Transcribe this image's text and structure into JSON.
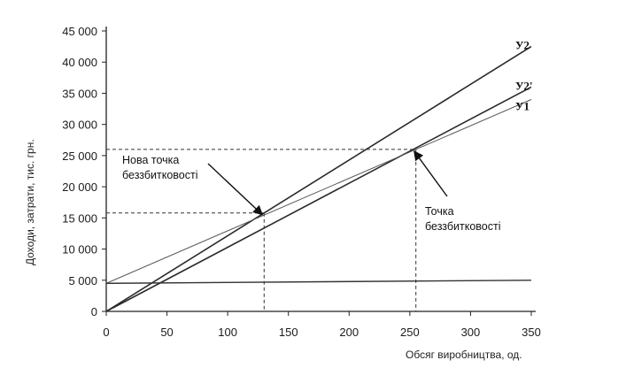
{
  "chart_data": {
    "type": "line",
    "title": "",
    "xlabel": "Обсяг виробництва, од.",
    "ylabel": "Доходи, затрати, тис. грн.",
    "xlim": [
      0,
      350
    ],
    "ylim": [
      0,
      45000
    ],
    "x_ticks": [
      0,
      50,
      100,
      150,
      200,
      250,
      300,
      350
    ],
    "x_tick_labels": [
      "0",
      "50",
      "100",
      "150",
      "200",
      "250",
      "300",
      "350"
    ],
    "y_ticks": [
      0,
      5000,
      10000,
      15000,
      20000,
      25000,
      30000,
      35000,
      40000,
      45000
    ],
    "y_tick_labels": [
      "0",
      "5 000",
      "10 000",
      "15 000",
      "20 000",
      "25 000",
      "30 000",
      "35 000",
      "40 000",
      "45 000"
    ],
    "grid": false,
    "series": [
      {
        "name": "У2",
        "x": [
          0,
          350
        ],
        "y": [
          0,
          42500
        ],
        "color": "#2a2a2a"
      },
      {
        "name": "У2'",
        "x": [
          0,
          350
        ],
        "y": [
          0,
          36000
        ],
        "color": "#2a2a2a"
      },
      {
        "name": "У1",
        "x": [
          0,
          350
        ],
        "y": [
          4500,
          34000
        ],
        "color": "#555555"
      },
      {
        "name": "",
        "x": [
          0,
          350
        ],
        "y": [
          4500,
          5000
        ],
        "color": "#333333"
      }
    ],
    "annotations": [
      {
        "text": "Нова точка беззбитковості",
        "x": 130,
        "y": 15800
      },
      {
        "text": "Точка беззбитковості",
        "x": 255,
        "y": 26000
      }
    ]
  }
}
